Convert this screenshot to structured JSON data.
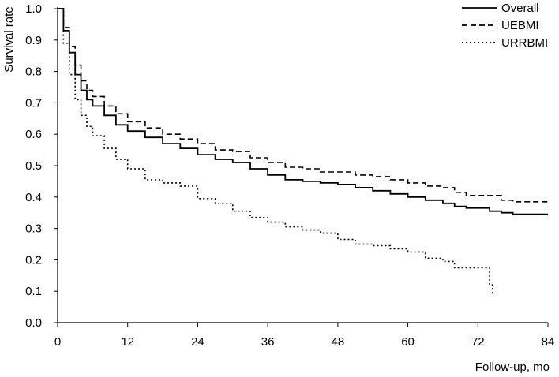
{
  "chart_data": {
    "type": "line",
    "title": "",
    "xlabel": "Follow-up, mo",
    "ylabel": "Survival rate",
    "xlim": [
      0,
      84
    ],
    "ylim": [
      0,
      1.0
    ],
    "x_ticks": [
      0,
      12,
      24,
      36,
      48,
      60,
      72,
      84
    ],
    "y_ticks": [
      0.0,
      0.1,
      0.2,
      0.3,
      0.4,
      0.5,
      0.6,
      0.7,
      0.8,
      0.9,
      1.0
    ],
    "x_tick_labels": [
      "0",
      "12",
      "24",
      "36",
      "48",
      "60",
      "72",
      "84"
    ],
    "y_tick_labels": [
      "0.0",
      "0.1",
      "0.2",
      "0.3",
      "0.4",
      "0.5",
      "0.6",
      "0.7",
      "0.8",
      "0.9",
      "1.0"
    ],
    "grid": false,
    "legend_position": "top-right",
    "series": [
      {
        "name": "Overall",
        "style": "solid",
        "color": "#000000",
        "x": [
          0,
          1,
          2,
          3,
          4,
          5,
          6,
          8,
          10,
          12,
          15,
          18,
          21,
          24,
          27,
          30,
          33,
          36,
          39,
          42,
          45,
          48,
          51,
          54,
          57,
          60,
          63,
          66,
          68,
          70,
          72,
          74,
          76,
          78,
          81,
          84
        ],
        "y": [
          1.0,
          0.93,
          0.86,
          0.79,
          0.74,
          0.71,
          0.69,
          0.66,
          0.63,
          0.61,
          0.59,
          0.57,
          0.555,
          0.535,
          0.52,
          0.51,
          0.49,
          0.47,
          0.455,
          0.45,
          0.445,
          0.44,
          0.43,
          0.42,
          0.41,
          0.4,
          0.39,
          0.38,
          0.37,
          0.365,
          0.365,
          0.355,
          0.35,
          0.345,
          0.345,
          0.345
        ]
      },
      {
        "name": "UEBMI",
        "style": "dashed",
        "color": "#000000",
        "x": [
          0,
          1,
          2,
          3,
          4,
          5,
          6,
          8,
          10,
          12,
          15,
          18,
          21,
          24,
          27,
          30,
          33,
          36,
          39,
          42,
          45,
          48,
          51,
          54,
          57,
          60,
          63,
          66,
          68,
          70,
          72,
          74,
          76,
          78,
          81,
          84
        ],
        "y": [
          1.0,
          0.94,
          0.88,
          0.82,
          0.77,
          0.74,
          0.72,
          0.69,
          0.665,
          0.64,
          0.62,
          0.6,
          0.585,
          0.57,
          0.55,
          0.545,
          0.525,
          0.51,
          0.495,
          0.49,
          0.48,
          0.48,
          0.47,
          0.465,
          0.455,
          0.445,
          0.435,
          0.43,
          0.415,
          0.405,
          0.405,
          0.405,
          0.39,
          0.385,
          0.385,
          0.385
        ]
      },
      {
        "name": "URRBMI",
        "style": "dotted",
        "color": "#000000",
        "x": [
          0,
          1,
          2,
          3,
          4,
          5,
          6,
          8,
          10,
          12,
          15,
          18,
          21,
          24,
          27,
          30,
          33,
          36,
          39,
          42,
          45,
          48,
          51,
          54,
          57,
          60,
          63,
          66,
          68,
          70,
          72,
          73,
          74,
          74.5
        ],
        "y": [
          1.0,
          0.89,
          0.79,
          0.71,
          0.66,
          0.625,
          0.595,
          0.555,
          0.52,
          0.49,
          0.455,
          0.445,
          0.435,
          0.395,
          0.38,
          0.355,
          0.335,
          0.32,
          0.305,
          0.295,
          0.285,
          0.265,
          0.25,
          0.245,
          0.235,
          0.225,
          0.205,
          0.195,
          0.175,
          0.175,
          0.175,
          0.175,
          0.12,
          0.085
        ]
      }
    ]
  }
}
